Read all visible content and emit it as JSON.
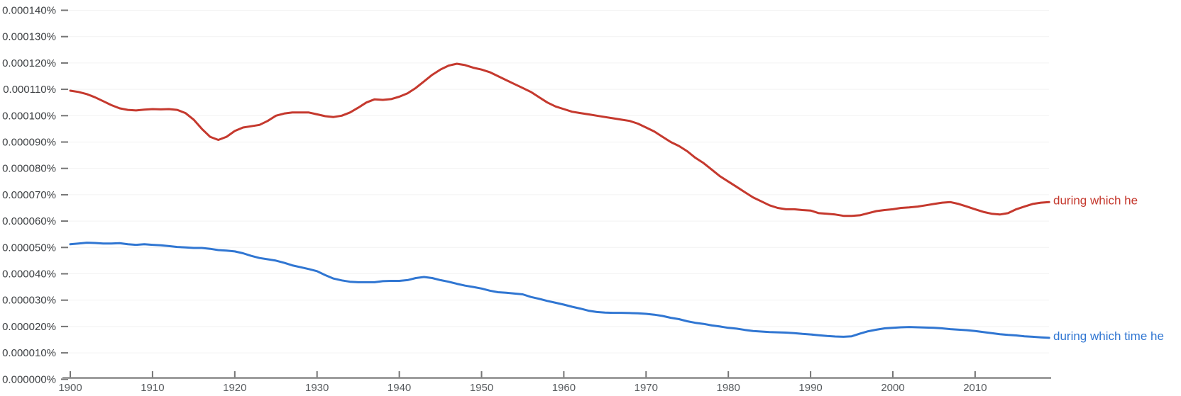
{
  "chart_data": {
    "type": "line",
    "title": "",
    "xlabel": "",
    "ylabel": "",
    "grid": true,
    "legend_position": "right-of-line-end",
    "x_range": [
      1900,
      2019
    ],
    "x_ticks": [
      1900,
      1910,
      1920,
      1930,
      1940,
      1950,
      1960,
      1970,
      1980,
      1990,
      2000,
      2010
    ],
    "y_unit": "percent, stored values are in units of 0.000010%",
    "y_value_scale": 1e-05,
    "ylim": [
      0,
      14
    ],
    "y_tick_step": 1,
    "y_tick_labels": [
      "0.000000%",
      "0.000010%",
      "0.000020%",
      "0.000030%",
      "0.000040%",
      "0.000050%",
      "0.000060%",
      "0.000070%",
      "0.000080%",
      "0.000090%",
      "0.000100%",
      "0.000110%",
      "0.000120%",
      "0.000130%",
      "0.000140%"
    ],
    "x": [
      1900,
      1901,
      1902,
      1903,
      1904,
      1905,
      1906,
      1907,
      1908,
      1909,
      1910,
      1911,
      1912,
      1913,
      1914,
      1915,
      1916,
      1917,
      1918,
      1919,
      1920,
      1921,
      1922,
      1923,
      1924,
      1925,
      1926,
      1927,
      1928,
      1929,
      1930,
      1931,
      1932,
      1933,
      1934,
      1935,
      1936,
      1937,
      1938,
      1939,
      1940,
      1941,
      1942,
      1943,
      1944,
      1945,
      1946,
      1947,
      1948,
      1949,
      1950,
      1951,
      1952,
      1953,
      1954,
      1955,
      1956,
      1957,
      1958,
      1959,
      1960,
      1961,
      1962,
      1963,
      1964,
      1965,
      1966,
      1967,
      1968,
      1969,
      1970,
      1971,
      1972,
      1973,
      1974,
      1975,
      1976,
      1977,
      1978,
      1979,
      1980,
      1981,
      1982,
      1983,
      1984,
      1985,
      1986,
      1987,
      1988,
      1989,
      1990,
      1991,
      1992,
      1993,
      1994,
      1995,
      1996,
      1997,
      1998,
      1999,
      2000,
      2001,
      2002,
      2003,
      2004,
      2005,
      2006,
      2007,
      2008,
      2009,
      2010,
      2011,
      2012,
      2013,
      2014,
      2015,
      2016,
      2017,
      2018,
      2019
    ],
    "series": [
      {
        "name": "during which he",
        "color": "#c5392e",
        "values": [
          10.95,
          10.9,
          10.82,
          10.7,
          10.55,
          10.4,
          10.28,
          10.22,
          10.2,
          10.23,
          10.25,
          10.24,
          10.25,
          10.22,
          10.1,
          9.85,
          9.5,
          9.2,
          9.08,
          9.2,
          9.42,
          9.55,
          9.6,
          9.65,
          9.8,
          10.0,
          10.08,
          10.12,
          10.12,
          10.12,
          10.05,
          9.98,
          9.95,
          10.0,
          10.12,
          10.3,
          10.5,
          10.62,
          10.6,
          10.63,
          10.72,
          10.85,
          11.05,
          11.3,
          11.55,
          11.75,
          11.9,
          11.97,
          11.92,
          11.82,
          11.75,
          11.65,
          11.5,
          11.35,
          11.2,
          11.05,
          10.9,
          10.7,
          10.5,
          10.35,
          10.25,
          10.15,
          10.1,
          10.05,
          10.0,
          9.95,
          9.9,
          9.85,
          9.8,
          9.7,
          9.55,
          9.4,
          9.2,
          9.0,
          8.85,
          8.65,
          8.4,
          8.2,
          7.95,
          7.7,
          7.5,
          7.3,
          7.1,
          6.9,
          6.75,
          6.6,
          6.5,
          6.45,
          6.45,
          6.42,
          6.4,
          6.3,
          6.28,
          6.25,
          6.2,
          6.2,
          6.22,
          6.3,
          6.38,
          6.42,
          6.45,
          6.5,
          6.52,
          6.55,
          6.6,
          6.65,
          6.7,
          6.72,
          6.65,
          6.55,
          6.45,
          6.35,
          6.28,
          6.25,
          6.3,
          6.45,
          6.55,
          6.65,
          6.7,
          6.72
        ]
      },
      {
        "name": "during which time he",
        "color": "#3076d2",
        "values": [
          5.12,
          5.15,
          5.18,
          5.17,
          5.15,
          5.15,
          5.16,
          5.12,
          5.1,
          5.12,
          5.1,
          5.08,
          5.05,
          5.02,
          5.0,
          4.98,
          4.98,
          4.95,
          4.9,
          4.88,
          4.85,
          4.78,
          4.68,
          4.6,
          4.55,
          4.5,
          4.42,
          4.32,
          4.25,
          4.18,
          4.1,
          3.95,
          3.82,
          3.75,
          3.7,
          3.68,
          3.68,
          3.68,
          3.72,
          3.73,
          3.73,
          3.76,
          3.84,
          3.88,
          3.84,
          3.76,
          3.7,
          3.62,
          3.55,
          3.5,
          3.44,
          3.36,
          3.3,
          3.28,
          3.25,
          3.22,
          3.12,
          3.05,
          2.97,
          2.9,
          2.83,
          2.75,
          2.68,
          2.6,
          2.55,
          2.53,
          2.52,
          2.52,
          2.51,
          2.5,
          2.48,
          2.45,
          2.4,
          2.33,
          2.28,
          2.2,
          2.14,
          2.1,
          2.04,
          2.0,
          1.95,
          1.92,
          1.87,
          1.83,
          1.81,
          1.79,
          1.78,
          1.77,
          1.75,
          1.72,
          1.7,
          1.67,
          1.64,
          1.62,
          1.61,
          1.63,
          1.73,
          1.82,
          1.88,
          1.93,
          1.95,
          1.97,
          1.98,
          1.97,
          1.96,
          1.95,
          1.93,
          1.9,
          1.88,
          1.86,
          1.83,
          1.79,
          1.75,
          1.71,
          1.68,
          1.66,
          1.63,
          1.61,
          1.59,
          1.57
        ]
      }
    ],
    "colors": {
      "gridline": "#f2f2f2",
      "axis_line": "#9e9e9e",
      "tick_mark": "#757575",
      "y_label_text": "#3d4043",
      "x_label_text": "#575b5e"
    }
  }
}
